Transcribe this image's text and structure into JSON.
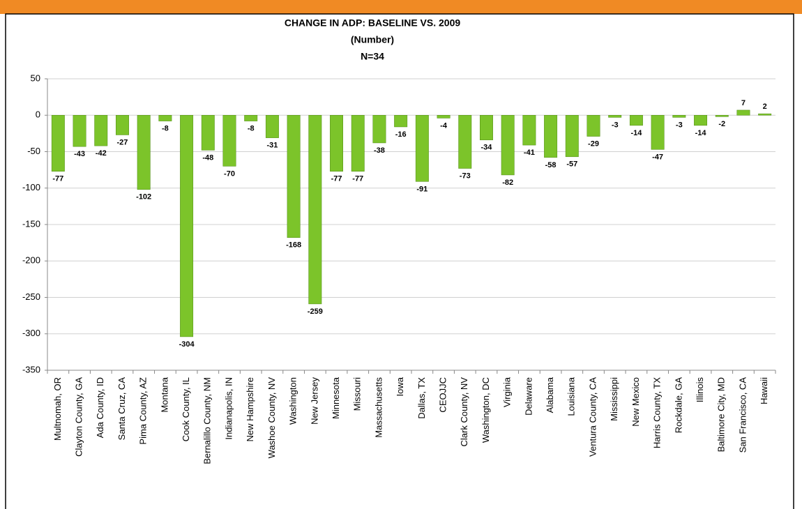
{
  "chart_data": {
    "type": "bar",
    "title": "CHANGE IN ADP: BASELINE VS. 2009",
    "subtitle": "(Number)",
    "note": "N=34",
    "categories": [
      "Multnomah, OR",
      "Clayton County, GA",
      "Ada County, ID",
      "Santa Cruz, CA",
      "Pima County, AZ",
      "Montana",
      "Cook County, IL",
      "Bernalillo County, NM",
      "Indianapolis, IN",
      "New Hampshire",
      "Washoe County, NV",
      "Washington",
      "New Jersey",
      "Minnesota",
      "Missouri",
      "Massachusetts",
      "Iowa",
      "Dallas, TX",
      "CEOJJC",
      "Clark County, NV",
      "Washington, DC",
      "Virginia",
      "Delaware",
      "Alabama",
      "Louisiana",
      "Ventura County, CA",
      "Mississippi",
      "New Mexico",
      "Harris County, TX",
      "Rockdale, GA",
      "Illinois",
      "Baltimore City, MD",
      "San Francisco, CA",
      "Hawaii"
    ],
    "values": [
      -77,
      -43,
      -42,
      -27,
      -102,
      -8,
      -304,
      -48,
      -70,
      -8,
      -31,
      -168,
      -259,
      -77,
      -77,
      -38,
      -16,
      -91,
      -4,
      -73,
      -34,
      -82,
      -41,
      -58,
      -57,
      -29,
      -3,
      -14,
      -47,
      -3,
      -14,
      -2,
      7,
      2
    ],
    "color": "#7cc42a",
    "ylim": [
      -350,
      50
    ],
    "yticks": [
      50,
      0,
      -50,
      -100,
      -150,
      -200,
      -250,
      -300,
      -350
    ],
    "grid": true
  }
}
